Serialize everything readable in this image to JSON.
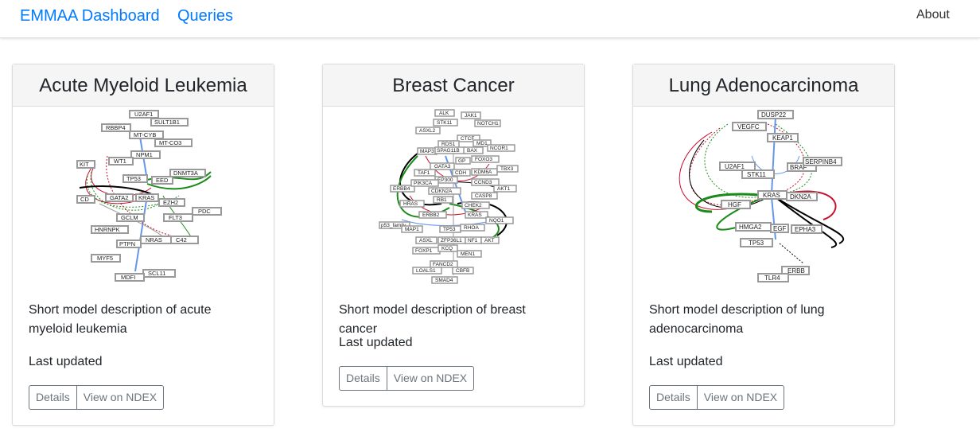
{
  "nav": {
    "brand": "EMMAA Dashboard",
    "queries": "Queries",
    "about": "About"
  },
  "cards": [
    {
      "title": "Acute Myeloid Leukemia",
      "description": "Short model description of acute myeloid leukemia",
      "last_updated": "Last updated",
      "details_label": "Details",
      "ndex_label": "View on NDEX",
      "nodes": [
        "U2AF1",
        "SULT1B1",
        "RBBP4",
        "MT-CYB",
        "MT-CO3",
        "NPM1",
        "WT1",
        "KIT",
        "TP53",
        "EED",
        "DNMT3A",
        "CD",
        "GATA2",
        "KRAS",
        "EZH2",
        "PDC",
        "GCLM",
        "FLT3",
        "HNRNPK",
        "PTPN",
        "NRAS",
        "C42",
        "MYF5",
        "SCL11",
        "MDFI"
      ]
    },
    {
      "title": "Breast Cancer",
      "description": "Short model description of breast cancer",
      "last_updated": "Last updated",
      "details_label": "Details",
      "ndex_label": "View on NDEX",
      "nodes": [
        "ALK",
        "JAK1",
        "STK11",
        "NOTCH1",
        "ASXL2",
        "CTCF",
        "RDS1",
        "MD1",
        "MAP3",
        "SPAG11B",
        "BAX",
        "NCOR1",
        "GATA3",
        "GP",
        "FOXO3",
        "TAF1",
        "CDH",
        "KDM6A",
        "TBX3",
        "EP300",
        "CCND3",
        "ERBB4",
        "PIK3CA",
        "CDKN2A",
        "CASP8",
        "AKT1",
        "HRAS",
        "RB1",
        "CHEK2",
        "ERBB2",
        "KRAS",
        "NQO1",
        "p53_family",
        "MAP1",
        "TP53",
        "RHOA",
        "ASXL",
        "ZFP36L1",
        "NF1",
        "AKT",
        "FOXP1",
        "KCQ",
        "MEN1",
        "FANCD2",
        "LOALS1",
        "CBFB",
        "SMAD4"
      ]
    },
    {
      "title": "Lung Adenocarcinoma",
      "description": "Short model description of lung adenocarcinoma",
      "last_updated": "Last updated",
      "details_label": "Details",
      "ndex_label": "View on NDEX",
      "nodes": [
        "DUSP22",
        "VEGFC",
        "KEAP1",
        "U2AF1",
        "BRAF",
        "SERPINB4",
        "STK11",
        "KRAS",
        "DKN2A",
        "HGF",
        "HMGA2",
        "EGF",
        "EPHA3",
        "TP53",
        "ERBB",
        "TLR4"
      ]
    }
  ]
}
